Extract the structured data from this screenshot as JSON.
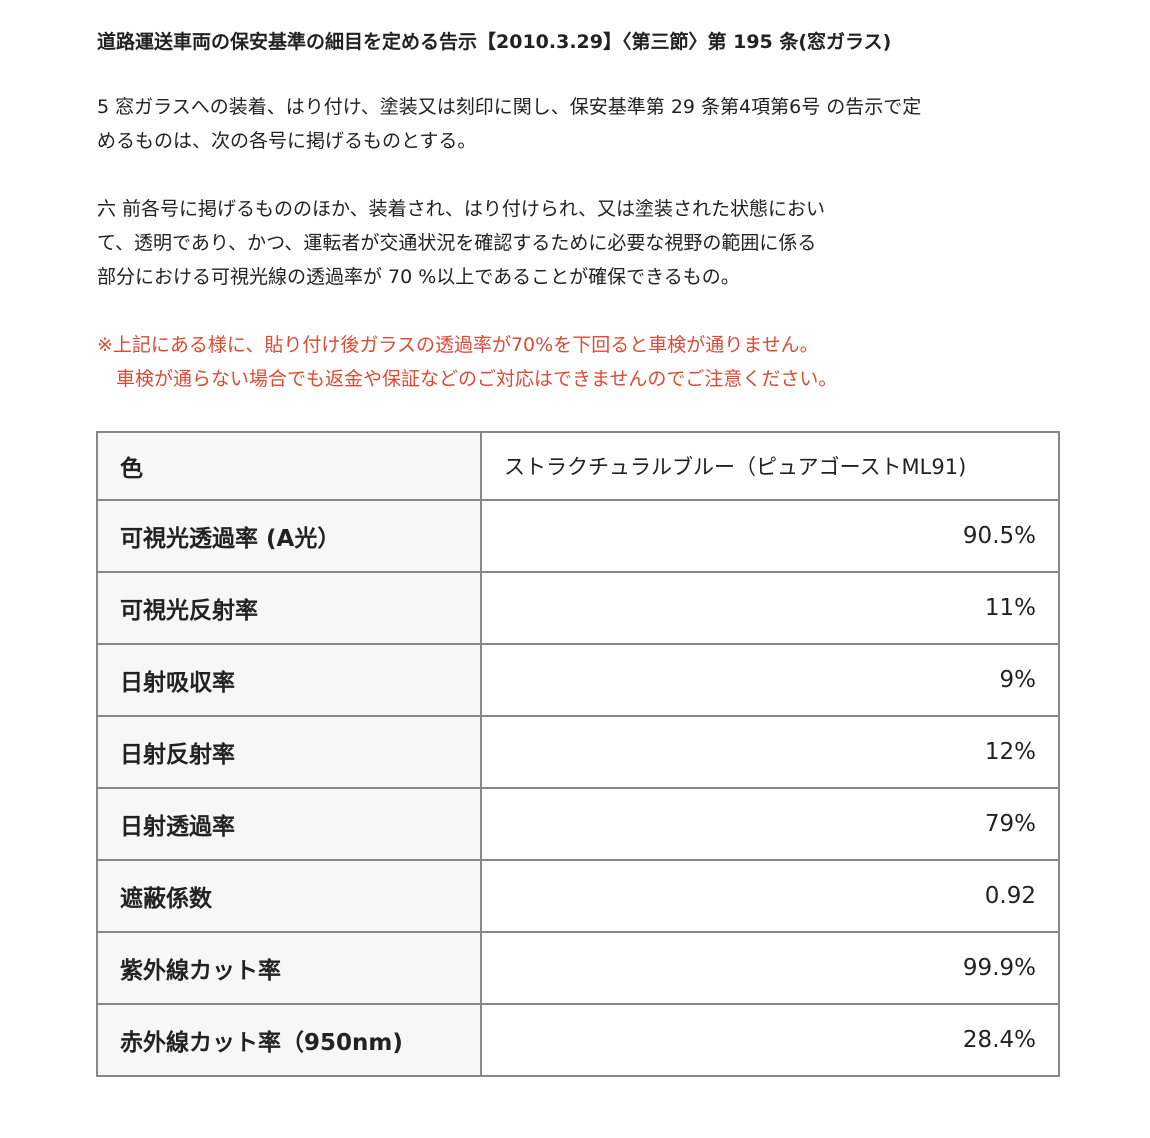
{
  "title": "道路運送車両の保安基準の細目を定める告示【2010.3.29】〈第三節〉第 195 条(窓ガラス)",
  "para1": [
    "5 窓ガラスへの装着、はり付け、塗装又は刻印に関し、保安基準第 29 条第4項第6号 の告示で定",
    "めるものは、次の各号に掲げるものとする。"
  ],
  "para2": [
    "六 前各号に掲げるもののほか、装着され、はり付けられ、又は塗装された状態におい",
    "て、透明であり、かつ、運転者が交通状況を確認するために必要な視野の範囲に係る",
    "部分における可視光線の透過率が 70 %以上であることが確保できるもの。"
  ],
  "notice": [
    "※上記にある様に、貼り付け後ガラスの透過率が70%を下回ると車検が通りません。",
    "　車検が通らない場合でも返金や保証などのご対応はできませんのでご注意ください。"
  ],
  "notice_color": "#e04a33",
  "table": {
    "header": {
      "label": "色",
      "value": "ストラクチュラルブルー（ピュアゴーストML91)"
    },
    "rows": [
      {
        "label": "可視光透過率 (A光）",
        "value": "90.5%"
      },
      {
        "label": "可視光反射率",
        "value": "11%"
      },
      {
        "label": "日射吸収率",
        "value": "9%"
      },
      {
        "label": "日射反射率",
        "value": "12%"
      },
      {
        "label": "日射透過率",
        "value": "79%"
      },
      {
        "label": "遮蔽係数",
        "value": "0.92"
      },
      {
        "label": "紫外線カット率",
        "value": "99.9%"
      },
      {
        "label": "赤外線カット率（950nm)",
        "value": "28.4%"
      }
    ]
  }
}
